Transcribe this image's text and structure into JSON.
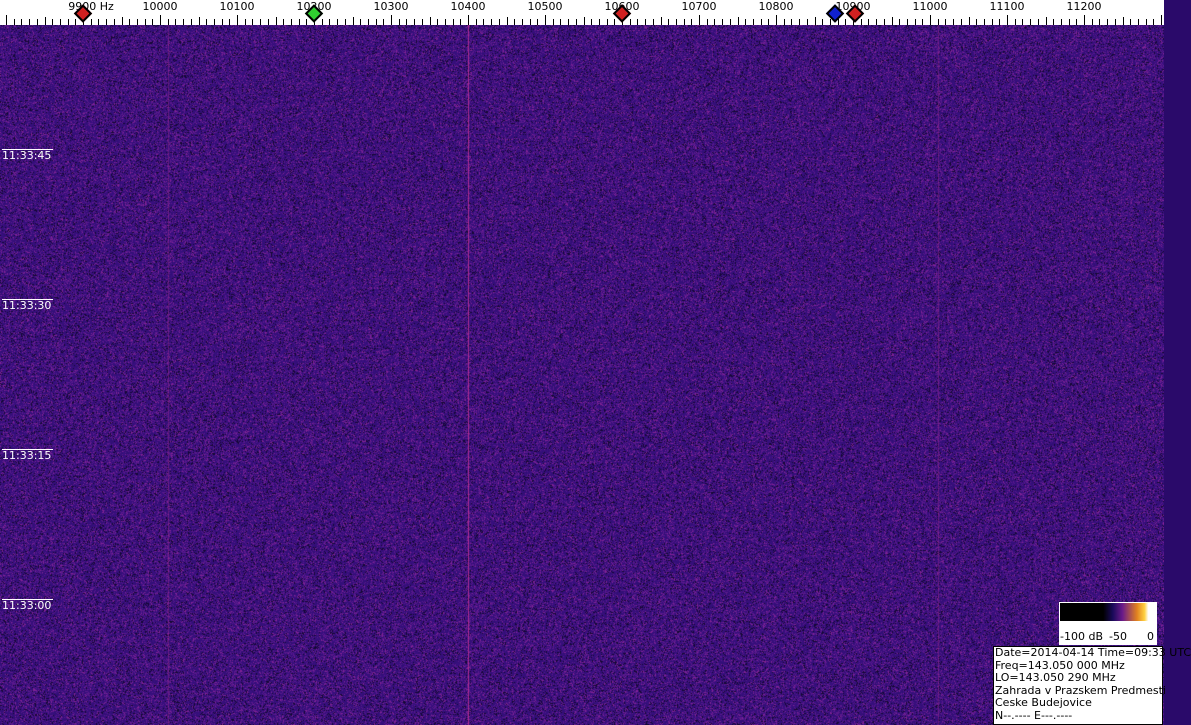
{
  "frequency_scale": {
    "unit": "Hz",
    "labels": [
      "9900 Hz",
      "10000",
      "10100",
      "10200",
      "10300",
      "10400",
      "10500",
      "10600",
      "10700",
      "10800",
      "10900",
      "11000",
      "11100",
      "11200"
    ],
    "values": [
      9900,
      10000,
      10100,
      10200,
      10300,
      10400,
      10500,
      10600,
      10700,
      10800,
      10900,
      11000,
      11100,
      11200
    ]
  },
  "markers": [
    {
      "freq": 9900,
      "color": "#d02020"
    },
    {
      "freq": 10200,
      "color": "#30d030"
    },
    {
      "freq": 10600,
      "color": "#d02020"
    },
    {
      "freq": 10877,
      "color": "#1020d0"
    },
    {
      "freq": 10903,
      "color": "#d02020"
    }
  ],
  "time_labels": [
    "11:33:45",
    "11:33:30",
    "11:33:15",
    "11:33:00"
  ],
  "carriers_hz": [
    10010,
    10400,
    11010
  ],
  "legend": {
    "labels": [
      "-100 dB",
      "-50",
      "0"
    ]
  },
  "info": {
    "line1": "Date=2014-04-14 Time=09:33 UTC",
    "line2": "Freq=143.050 000 MHz",
    "line3": "LO=143.050 290 MHz",
    "line4": "Zahrada v Prazskem Predmesti",
    "line5": "Ceske Budejovice",
    "line6": "N--.---- E---.----"
  }
}
